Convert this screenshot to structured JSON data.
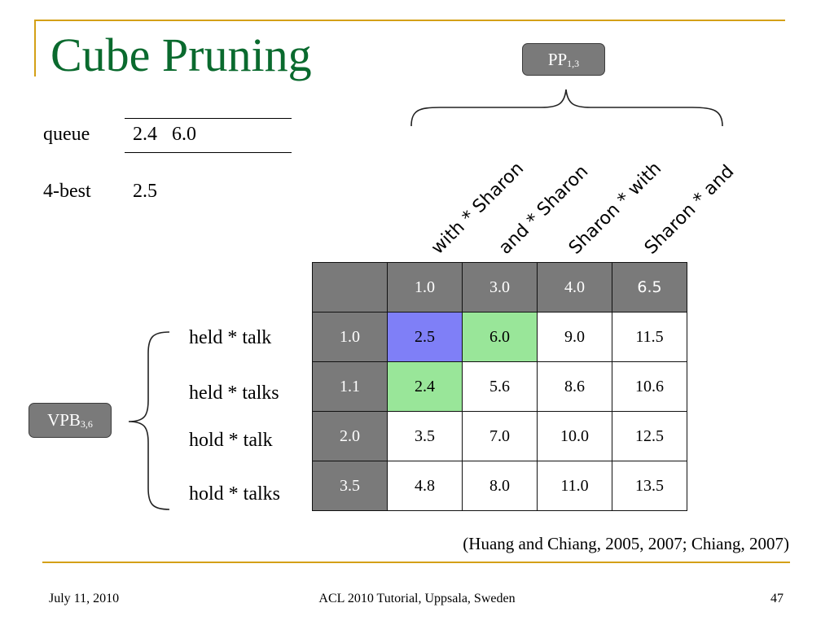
{
  "title": "Cube Pruning",
  "queue": {
    "label": "queue",
    "values": "2.4   6.0"
  },
  "best": {
    "label": "4-best",
    "value": "2.5"
  },
  "pp_tag": {
    "main": "PP",
    "sub": "1,3"
  },
  "vpb_tag": {
    "main": "VPB",
    "sub": "3,6"
  },
  "column_labels": [
    "with * Sharon",
    "and * Sharon",
    "Sharon *  with",
    "Sharon *   and"
  ],
  "row_labels": [
    "held * talk",
    "held * talks",
    "hold * talk",
    "hold * talks"
  ],
  "grid": {
    "col_scores": [
      "1.0",
      "3.0",
      "4.0",
      "6.5"
    ],
    "row_scores": [
      "1.0",
      "1.1",
      "2.0",
      "3.5"
    ],
    "cells": [
      [
        "2.5",
        "6.0",
        "9.0",
        "11.5"
      ],
      [
        "2.4",
        "5.6",
        "8.6",
        "10.6"
      ],
      [
        "3.5",
        "7.0",
        "10.0",
        "12.5"
      ],
      [
        "4.8",
        "8.0",
        "11.0",
        "13.5"
      ]
    ],
    "highlight_colors": {
      "best": "#7f7ff7",
      "queue": "#99e699",
      "header": "#7a7a7a"
    }
  },
  "citation": "(Huang and Chiang, 2005, 2007; Chiang, 2007)",
  "footer": {
    "date": "July 11, 2010",
    "center": "ACL 2010 Tutorial, Uppsala, Sweden",
    "page": "47"
  }
}
